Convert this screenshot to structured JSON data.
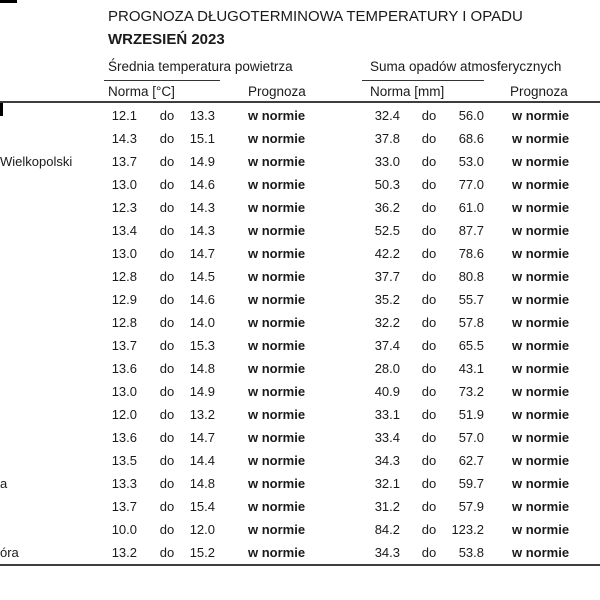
{
  "header": {
    "title": "PROGNOZA DŁUGOTERMINOWA TEMPERATURY I OPADU",
    "month": "WRZESIEŃ 2023"
  },
  "table": {
    "group_headers": {
      "temperature": "Średnia temperatura powietrza",
      "precipitation": "Suma opadów atmosferycznych"
    },
    "column_headers": {
      "temp_norm": "Norma [°C]",
      "temp_forecast": "Prognoza",
      "precip_norm": "Norma [mm]",
      "precip_forecast": "Prognoza"
    },
    "range_connector": "do",
    "rows": [
      {
        "city": "",
        "t_min": "12.1",
        "t_max": "13.3",
        "t_forecast": "w normie",
        "p_min": "32.4",
        "p_max": "56.0",
        "p_forecast": "w normie"
      },
      {
        "city": "",
        "t_min": "14.3",
        "t_max": "15.1",
        "t_forecast": "w normie",
        "p_min": "37.8",
        "p_max": "68.6",
        "p_forecast": "w normie"
      },
      {
        "city": "Wielkopolski",
        "t_min": "13.7",
        "t_max": "14.9",
        "t_forecast": "w normie",
        "p_min": "33.0",
        "p_max": "53.0",
        "p_forecast": "w normie"
      },
      {
        "city": "",
        "t_min": "13.0",
        "t_max": "14.6",
        "t_forecast": "w normie",
        "p_min": "50.3",
        "p_max": "77.0",
        "p_forecast": "w normie"
      },
      {
        "city": "",
        "t_min": "12.3",
        "t_max": "14.3",
        "t_forecast": "w normie",
        "p_min": "36.2",
        "p_max": "61.0",
        "p_forecast": "w normie"
      },
      {
        "city": "",
        "t_min": "13.4",
        "t_max": "14.3",
        "t_forecast": "w normie",
        "p_min": "52.5",
        "p_max": "87.7",
        "p_forecast": "w normie"
      },
      {
        "city": "",
        "t_min": "13.0",
        "t_max": "14.7",
        "t_forecast": "w normie",
        "p_min": "42.2",
        "p_max": "78.6",
        "p_forecast": "w normie"
      },
      {
        "city": "",
        "t_min": "12.8",
        "t_max": "14.5",
        "t_forecast": "w normie",
        "p_min": "37.7",
        "p_max": "80.8",
        "p_forecast": "w normie"
      },
      {
        "city": "",
        "t_min": "12.9",
        "t_max": "14.6",
        "t_forecast": "w normie",
        "p_min": "35.2",
        "p_max": "55.7",
        "p_forecast": "w normie"
      },
      {
        "city": "",
        "t_min": "12.8",
        "t_max": "14.0",
        "t_forecast": "w normie",
        "p_min": "32.2",
        "p_max": "57.8",
        "p_forecast": "w normie"
      },
      {
        "city": "",
        "t_min": "13.7",
        "t_max": "15.3",
        "t_forecast": "w normie",
        "p_min": "37.4",
        "p_max": "65.5",
        "p_forecast": "w normie"
      },
      {
        "city": "",
        "t_min": "13.6",
        "t_max": "14.8",
        "t_forecast": "w normie",
        "p_min": "28.0",
        "p_max": "43.1",
        "p_forecast": "w normie"
      },
      {
        "city": "",
        "t_min": "13.0",
        "t_max": "14.9",
        "t_forecast": "w normie",
        "p_min": "40.9",
        "p_max": "73.2",
        "p_forecast": "w normie"
      },
      {
        "city": "",
        "t_min": "12.0",
        "t_max": "13.2",
        "t_forecast": "w normie",
        "p_min": "33.1",
        "p_max": "51.9",
        "p_forecast": "w normie"
      },
      {
        "city": "",
        "t_min": "13.6",
        "t_max": "14.7",
        "t_forecast": "w normie",
        "p_min": "33.4",
        "p_max": "57.0",
        "p_forecast": "w normie"
      },
      {
        "city": "",
        "t_min": "13.5",
        "t_max": "14.4",
        "t_forecast": "w normie",
        "p_min": "34.3",
        "p_max": "62.7",
        "p_forecast": "w normie"
      },
      {
        "city": "a",
        "t_min": "13.3",
        "t_max": "14.8",
        "t_forecast": "w normie",
        "p_min": "32.1",
        "p_max": "59.7",
        "p_forecast": "w normie"
      },
      {
        "city": "",
        "t_min": "13.7",
        "t_max": "15.4",
        "t_forecast": "w normie",
        "p_min": "31.2",
        "p_max": "57.9",
        "p_forecast": "w normie"
      },
      {
        "city": "",
        "t_min": "10.0",
        "t_max": "12.0",
        "t_forecast": "w normie",
        "p_min": "84.2",
        "p_max": "123.2",
        "p_forecast": "w normie"
      },
      {
        "city": "óra",
        "t_min": "13.2",
        "t_max": "15.2",
        "t_forecast": "w normie",
        "p_min": "34.3",
        "p_max": "53.8",
        "p_forecast": "w normie"
      }
    ]
  }
}
